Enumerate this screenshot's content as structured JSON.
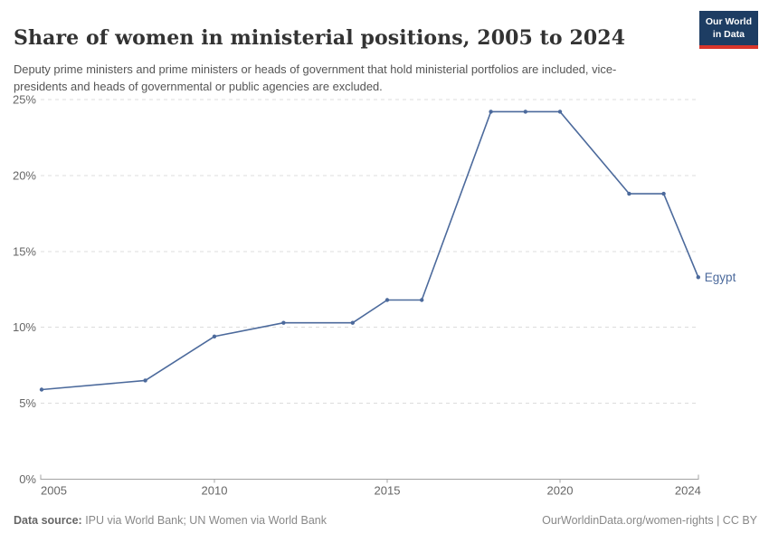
{
  "header": {
    "title": "Share of women in ministerial positions, 2005 to 2024",
    "subtitle": "Deputy prime ministers and prime ministers or heads of government that hold ministerial portfolios are included, vice-presidents and heads of governmental or public agencies are excluded."
  },
  "logo": {
    "line1": "Our World",
    "line2": "in Data",
    "bg_color": "#1d3d63",
    "stripe_color": "#d8352b"
  },
  "chart_data": {
    "type": "line",
    "title": "Share of women in ministerial positions, 2005 to 2024",
    "series": [
      {
        "name": "Egypt",
        "color": "#4c6a9c",
        "x": [
          2005,
          2008,
          2010,
          2012,
          2014,
          2015,
          2016,
          2018,
          2019,
          2020,
          2022,
          2023,
          2024
        ],
        "values": [
          5.9,
          6.5,
          9.4,
          10.3,
          10.3,
          11.8,
          11.8,
          24.2,
          24.2,
          24.2,
          18.8,
          18.8,
          13.3
        ]
      }
    ],
    "xlabel": "",
    "ylabel": "",
    "xlim": [
      2005,
      2024
    ],
    "ylim": [
      0,
      25
    ],
    "grid": "horizontal-dashed",
    "legend_position": "end-of-line-label",
    "end_label": "Egypt",
    "yticks": [
      {
        "value": 0,
        "label": "0%"
      },
      {
        "value": 5,
        "label": "5%"
      },
      {
        "value": 10,
        "label": "10%"
      },
      {
        "value": 15,
        "label": "15%"
      },
      {
        "value": 20,
        "label": "20%"
      },
      {
        "value": 25,
        "label": "25%"
      }
    ],
    "xticks": [
      {
        "value": 2005,
        "label": "2005"
      },
      {
        "value": 2010,
        "label": "2010"
      },
      {
        "value": 2015,
        "label": "2015"
      },
      {
        "value": 2020,
        "label": "2020"
      },
      {
        "value": 2024,
        "label": "2024"
      }
    ],
    "colors": {
      "grid": "#dcdcdc",
      "axis": "#a3a3a3",
      "tick_text": "#666666"
    }
  },
  "footer": {
    "source_label": "Data source:",
    "source_text": " IPU via World Bank; UN Women via World Bank",
    "right_text": "OurWorldinData.org/women-rights | CC BY"
  }
}
